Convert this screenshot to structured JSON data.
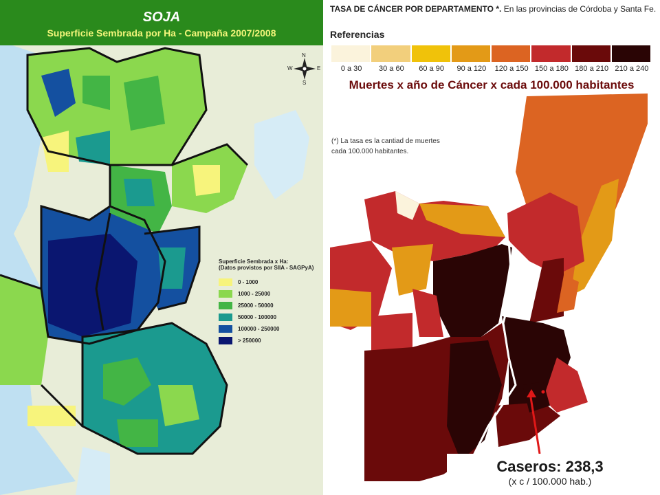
{
  "left_map": {
    "title": "SOJA",
    "subtitle": "Superficie Sembrada por Ha - Campaña 2007/2008",
    "compass": {
      "n": "N",
      "s": "S",
      "e": "E",
      "w": "W"
    },
    "legend": {
      "title_line1": "Superficie Sembrada x Ha:",
      "title_line2": "(Datos provistos por SIIA - SAGPyA)",
      "items": [
        {
          "label": "0 - 1000",
          "color": "#f7f47c"
        },
        {
          "label": "1000 - 25000",
          "color": "#8bd84e"
        },
        {
          "label": "25000 - 50000",
          "color": "#43b545"
        },
        {
          "label": "50000 - 100000",
          "color": "#1b9a8f"
        },
        {
          "label": "100000 - 250000",
          "color": "#1450a0"
        },
        {
          "label": "> 250000",
          "color": "#0a1670"
        }
      ]
    },
    "colors": {
      "background": "#e8edd8",
      "water": "#bfe0f2",
      "border": "#111111"
    }
  },
  "right_map": {
    "title_bold": "TASA DE CÁNCER POR DEPARTAMENTO *.",
    "title_rest": " En las provincias de Córdoba y Santa Fe.",
    "references_label": "Referencias",
    "scale": [
      {
        "label": "0 a 30",
        "color": "#fbf3dc"
      },
      {
        "label": "30 a 60",
        "color": "#f2cf7c"
      },
      {
        "label": "60 a 90",
        "color": "#f0c20a"
      },
      {
        "label": "90 a 120",
        "color": "#e39a17"
      },
      {
        "label": "120 a 150",
        "color": "#dc6422"
      },
      {
        "label": "150 a 180",
        "color": "#c22a2c"
      },
      {
        "label": "180 a 210",
        "color": "#6a0a0a"
      },
      {
        "label": "210 a 240",
        "color": "#2a0505"
      }
    ],
    "headline": "Muertes x año de Cáncer x cada 100.000 habitantes",
    "footnote_line1": "(*) La tasa es la cantiad de muertes",
    "footnote_line2": "cada 100.000 habitantes.",
    "callout_value": "Caseros: 238,3",
    "callout_unit": "(x c / 100.000 hab.)",
    "colors": {
      "arrow": "#e01818"
    }
  }
}
